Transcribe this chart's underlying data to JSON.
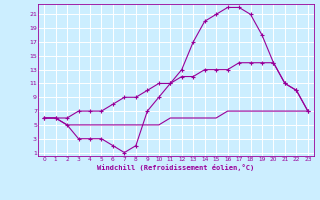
{
  "xlabel": "Windchill (Refroidissement éolien,°C)",
  "bg_color": "#cceeff",
  "line_color": "#990099",
  "grid_color": "#ffffff",
  "xlim": [
    -0.5,
    23.5
  ],
  "ylim": [
    0.5,
    22.5
  ],
  "xticks": [
    0,
    1,
    2,
    3,
    4,
    5,
    6,
    7,
    8,
    9,
    10,
    11,
    12,
    13,
    14,
    15,
    16,
    17,
    18,
    19,
    20,
    21,
    22,
    23
  ],
  "yticks": [
    1,
    3,
    5,
    7,
    9,
    11,
    13,
    15,
    17,
    19,
    21
  ],
  "line1_x": [
    0,
    1,
    2,
    3,
    4,
    5,
    6,
    7,
    8,
    9,
    10,
    11,
    12,
    13,
    14,
    15,
    16,
    17,
    18,
    19,
    20,
    21,
    22,
    23
  ],
  "line1_y": [
    6,
    6,
    5,
    3,
    3,
    3,
    2,
    1,
    2,
    7,
    9,
    11,
    13,
    17,
    20,
    21,
    22,
    22,
    21,
    18,
    14,
    11,
    10,
    7
  ],
  "line2_x": [
    0,
    1,
    2,
    3,
    4,
    5,
    6,
    7,
    8,
    9,
    10,
    11,
    12,
    13,
    14,
    15,
    16,
    17,
    18,
    19,
    20,
    21,
    22,
    23
  ],
  "line2_y": [
    6,
    6,
    6,
    7,
    7,
    7,
    8,
    9,
    9,
    10,
    11,
    11,
    12,
    12,
    13,
    13,
    13,
    14,
    14,
    14,
    14,
    11,
    10,
    7
  ],
  "line3_x": [
    0,
    1,
    2,
    3,
    4,
    5,
    6,
    7,
    8,
    9,
    10,
    11,
    12,
    13,
    14,
    15,
    16,
    17,
    18,
    19,
    20,
    21,
    22,
    23
  ],
  "line3_y": [
    6,
    6,
    5,
    5,
    5,
    5,
    5,
    5,
    5,
    5,
    5,
    6,
    6,
    6,
    6,
    6,
    7,
    7,
    7,
    7,
    7,
    7,
    7,
    7
  ]
}
